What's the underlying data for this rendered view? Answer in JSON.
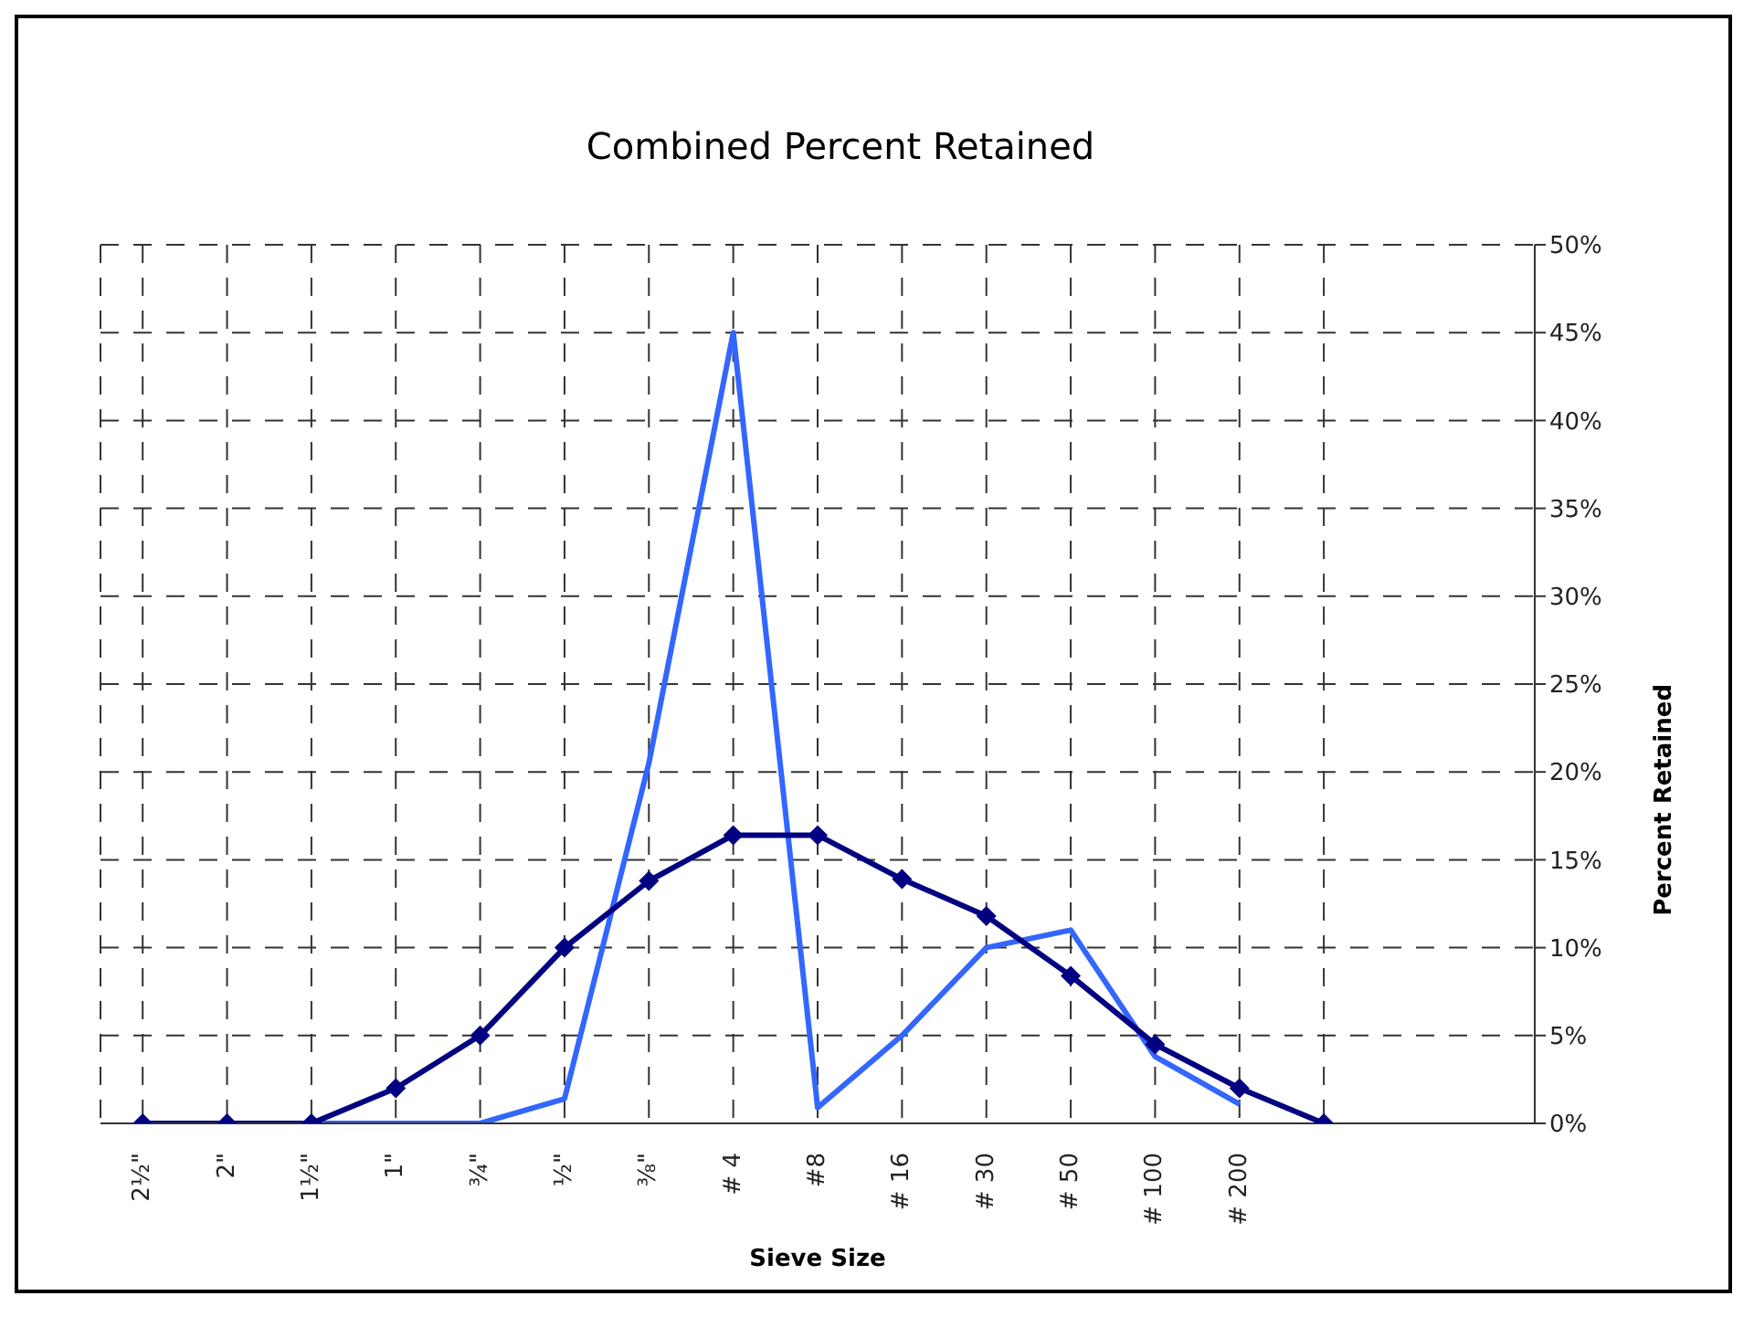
{
  "chart_data": {
    "type": "line",
    "title": "Combined Percent Retained",
    "xlabel": "Sieve Size",
    "ylabel": "Percent Retained",
    "categories": [
      "2½\"",
      "2\"",
      "1½\"",
      "1\"",
      "¾\"",
      "½\"",
      "⅜\"",
      "# 4",
      "#8",
      "# 16",
      "# 30",
      "# 50",
      "# 100",
      "# 200",
      null
    ],
    "ylim": [
      0,
      50
    ],
    "yticks": [
      {
        "value": 0,
        "label": "0%"
      },
      {
        "value": 5,
        "label": "5%"
      },
      {
        "value": 10,
        "label": "10%"
      },
      {
        "value": 15,
        "label": "15%"
      },
      {
        "value": 20,
        "label": "20%"
      },
      {
        "value": 25,
        "label": "25%"
      },
      {
        "value": 30,
        "label": "30%"
      },
      {
        "value": 35,
        "label": "35%"
      },
      {
        "value": 40,
        "label": "40%"
      },
      {
        "value": 45,
        "label": "45%"
      },
      {
        "value": 50,
        "label": "50%"
      }
    ],
    "grid": true,
    "line_style": "solid",
    "series": [
      {
        "color": "#3366ff",
        "marker": "none",
        "values": [
          0,
          0,
          0,
          0,
          0,
          1.4,
          20.5,
          45,
          0.9,
          5,
          10,
          11,
          3.8,
          1.1,
          null
        ]
      },
      {
        "color": "#000080",
        "marker": "diamond",
        "values": [
          0,
          0,
          0,
          2,
          5,
          10,
          13.8,
          16.4,
          16.4,
          13.9,
          11.8,
          8.4,
          4.5,
          2,
          0
        ]
      }
    ]
  }
}
